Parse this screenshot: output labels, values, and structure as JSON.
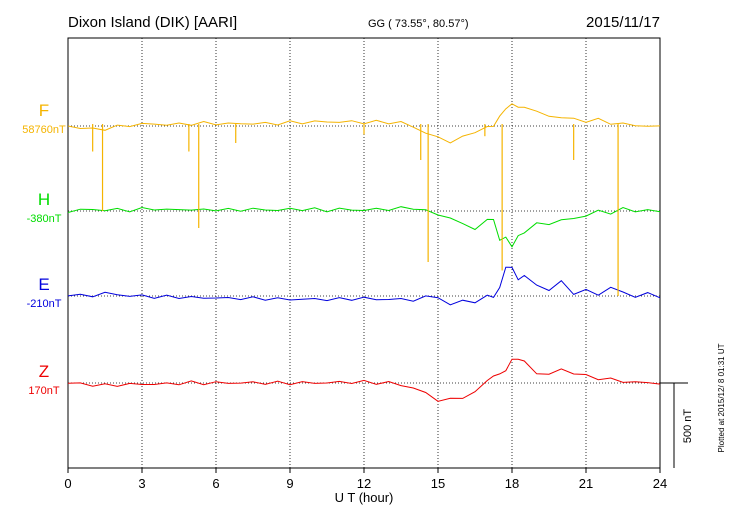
{
  "header": {
    "station": "Dixon Island (DIK)  [AARI]",
    "coords": "GG ( 73.55°,  80.57°)",
    "date": "2015/11/17"
  },
  "footer": {
    "plotted": "Plotted at 2015/12/ 8 01:31  UT"
  },
  "chart_data": {
    "type": "line",
    "title": "Dixon Island (DIK)  [AARI]",
    "xlabel": "U T (hour)",
    "xlim": [
      0,
      24
    ],
    "xticks": [
      "0",
      "3",
      "6",
      "9",
      "12",
      "15",
      "18",
      "21",
      "24"
    ],
    "scale_bar_label": "500 nT",
    "scale_bar_nT": 500,
    "grid": true,
    "units_note": "y values are deviations in nT from each series baseline",
    "series": [
      {
        "name": "F",
        "baseline_label": "58760nT",
        "color": "#f5b400",
        "x": [
          0,
          0.5,
          1,
          1.5,
          2,
          2.5,
          3,
          3.5,
          4,
          4.5,
          5,
          5.5,
          6,
          6.5,
          7,
          7.5,
          8,
          8.5,
          9,
          9.5,
          10,
          10.5,
          11,
          11.5,
          12,
          12.5,
          13,
          13.5,
          14,
          14.5,
          15,
          15.5,
          16,
          16.5,
          17,
          17.25,
          17.5,
          17.75,
          18,
          18.25,
          18.5,
          19,
          19.5,
          20,
          20.5,
          21,
          21.5,
          22,
          22.5,
          23,
          23.5,
          24
        ],
        "y": [
          0,
          -10,
          -20,
          -15,
          -5,
          5,
          10,
          12,
          8,
          10,
          14,
          16,
          15,
          12,
          14,
          15,
          14,
          16,
          20,
          22,
          24,
          25,
          24,
          24,
          22,
          23,
          22,
          20,
          -5,
          -40,
          -70,
          -90,
          -70,
          -30,
          -10,
          0,
          60,
          95,
          140,
          100,
          120,
          80,
          60,
          50,
          40,
          30,
          35,
          20,
          10,
          5,
          0,
          -5
        ]
      },
      {
        "name": "H",
        "baseline_label": "-380nT",
        "color": "#00dd00",
        "x": [
          0,
          0.5,
          1,
          1.5,
          2,
          2.5,
          3,
          3.5,
          4,
          4.5,
          5,
          5.5,
          6,
          6.5,
          7,
          7.5,
          8,
          8.5,
          9,
          9.5,
          10,
          10.5,
          11,
          11.5,
          12,
          12.5,
          13,
          13.5,
          14,
          14.5,
          15,
          15.5,
          16,
          16.5,
          17,
          17.25,
          17.5,
          17.75,
          18,
          18.25,
          18.5,
          19,
          19.5,
          20,
          20.5,
          21,
          21.5,
          22,
          22.5,
          23,
          23.5,
          24
        ],
        "y": [
          0,
          5,
          10,
          5,
          8,
          5,
          10,
          15,
          5,
          10,
          8,
          5,
          10,
          5,
          8,
          10,
          8,
          5,
          10,
          12,
          8,
          5,
          10,
          8,
          5,
          10,
          12,
          15,
          20,
          0,
          -20,
          -40,
          -80,
          -100,
          -60,
          -40,
          -180,
          -150,
          -210,
          -150,
          -120,
          -80,
          -70,
          -60,
          -40,
          -30,
          0,
          -10,
          10,
          5,
          0,
          0
        ]
      },
      {
        "name": "E",
        "baseline_label": "-210nT",
        "color": "#0000dd",
        "x": [
          0,
          0.5,
          1,
          1.5,
          2,
          2.5,
          3,
          3.5,
          4,
          4.5,
          5,
          5.5,
          6,
          6.5,
          7,
          7.5,
          8,
          8.5,
          9,
          9.5,
          10,
          10.5,
          11,
          11.5,
          12,
          12.5,
          13,
          13.5,
          14,
          14.5,
          15,
          15.5,
          16,
          16.5,
          17,
          17.25,
          17.5,
          17.75,
          18,
          18.25,
          18.5,
          19,
          19.5,
          20,
          20.5,
          21,
          21.5,
          22,
          22.5,
          23,
          23.5,
          24
        ],
        "y": [
          10,
          0,
          5,
          15,
          10,
          0,
          0,
          -5,
          -5,
          -5,
          -10,
          -10,
          -10,
          -15,
          -12,
          -15,
          -15,
          -18,
          -20,
          -18,
          -20,
          -18,
          -20,
          -15,
          -15,
          -18,
          -20,
          -20,
          -22,
          -10,
          0,
          -60,
          -20,
          -40,
          0,
          0,
          40,
          180,
          160,
          100,
          120,
          60,
          40,
          80,
          20,
          30,
          10,
          50,
          20,
          0,
          10,
          0
        ]
      },
      {
        "name": "Z",
        "baseline_label": "170nT",
        "color": "#ee0000",
        "x": [
          0,
          0.5,
          1,
          1.5,
          2,
          2.5,
          3,
          3.5,
          4,
          4.5,
          5,
          5.5,
          6,
          6.5,
          7,
          7.5,
          8,
          8.5,
          9,
          9.5,
          10,
          10.5,
          11,
          11.5,
          12,
          12.5,
          13,
          13.5,
          14,
          14.5,
          15,
          15.5,
          16,
          16.5,
          17,
          17.25,
          17.5,
          17.75,
          18,
          18.25,
          18.5,
          19,
          19.5,
          20,
          20.5,
          21,
          21.5,
          22,
          22.5,
          23,
          23.5,
          24
        ],
        "y": [
          0,
          -5,
          -10,
          -15,
          -10,
          -10,
          -5,
          -8,
          -5,
          -2,
          2,
          0,
          0,
          2,
          0,
          2,
          0,
          0,
          0,
          0,
          2,
          0,
          5,
          5,
          5,
          2,
          0,
          -10,
          -30,
          -60,
          -100,
          -100,
          -80,
          -60,
          20,
          40,
          50,
          80,
          130,
          150,
          120,
          60,
          50,
          80,
          60,
          40,
          30,
          20,
          10,
          5,
          0,
          0
        ]
      }
    ],
    "spikes": [
      {
        "series": "F",
        "x": [
          1.0,
          1.4,
          4.9,
          5.3,
          6.8,
          12.0,
          14.3,
          14.6,
          16.9,
          17.6,
          20.5,
          22.3
        ],
        "depth": [
          150,
          500,
          150,
          600,
          100,
          50,
          200,
          800,
          60,
          850,
          200,
          1000
        ]
      }
    ]
  }
}
